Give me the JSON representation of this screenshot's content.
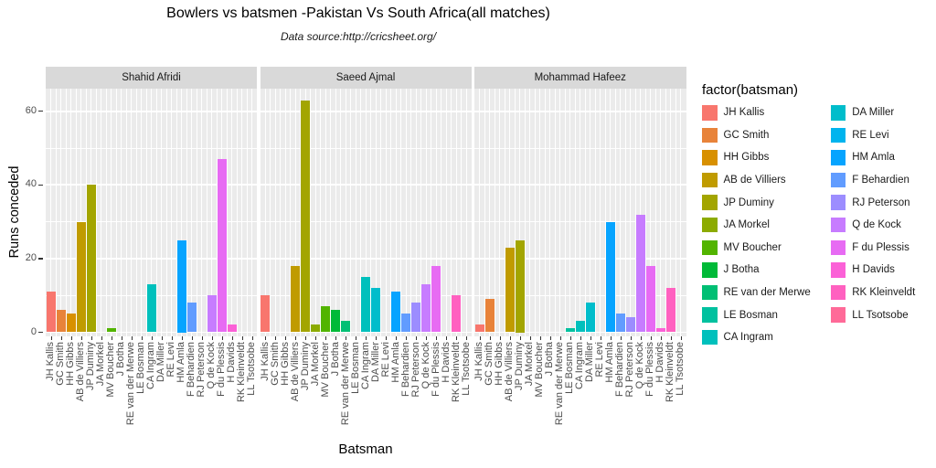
{
  "chart": {
    "title": "Bowlers vs batsmen -Pakistan Vs South Africa(all matches)",
    "subtitle": "Data source:http://cricsheet.org/",
    "xlabel": "Batsman",
    "ylabel": "Runs conceded",
    "legend_title": "factor(batsman)"
  },
  "chart_data": {
    "type": "bar",
    "facet_by": "bowler",
    "facets": [
      "Shahid Afridi",
      "Saeed Ajmal",
      "Mohammad Hafeez"
    ],
    "categories": [
      "JH Kallis",
      "GC Smith",
      "HH Gibbs",
      "AB de Villiers",
      "JP Duminy",
      "JA Morkel",
      "MV Boucher",
      "J Botha",
      "RE van der Merwe",
      "LE Bosman",
      "CA Ingram",
      "DA Miller",
      "RE Levi",
      "HM Amla",
      "F Behardien",
      "RJ Peterson",
      "Q de Kock",
      "F du Plessis",
      "H Davids",
      "RK Kleinveldt",
      "LL Tsotsobe"
    ],
    "colors": [
      "#F8766D",
      "#E8833A",
      "#D89000",
      "#C09B00",
      "#A3A500",
      "#8CAB00",
      "#52B400",
      "#00BA38",
      "#00BF74",
      "#00C19F",
      "#00C0BC",
      "#00BDCB",
      "#00B4EE",
      "#06A4FF",
      "#619CFF",
      "#9C8DFF",
      "#C77CFF",
      "#E76BF3",
      "#FB61D7",
      "#FF61C0",
      "#FF6A98"
    ],
    "panels": [
      {
        "bowler": "Shahid Afridi",
        "values": [
          11,
          6,
          5,
          30,
          40,
          0,
          1,
          0,
          0,
          0,
          13,
          0,
          0,
          25,
          8,
          0,
          10,
          47,
          2,
          0,
          0
        ]
      },
      {
        "bowler": "Saeed Ajmal",
        "values": [
          10,
          0,
          0,
          18,
          63,
          2,
          7,
          6,
          3,
          0,
          15,
          12,
          0,
          11,
          5,
          8,
          13,
          18,
          0,
          10,
          0
        ]
      },
      {
        "bowler": "Mohammad Hafeez",
        "values": [
          2,
          9,
          0,
          23,
          25,
          0,
          0,
          0,
          0,
          1,
          3,
          8,
          0,
          30,
          5,
          4,
          32,
          18,
          1,
          12,
          0
        ]
      }
    ],
    "yticks": [
      0,
      20,
      40,
      60
    ],
    "ylim": [
      0,
      66
    ],
    "grid": {
      "horizontal_major": [
        0,
        20,
        40,
        60
      ],
      "horizontal_minor": [
        10,
        30,
        50
      ],
      "vertical": "per-category",
      "color": "#FFFFFF"
    },
    "legend_position": "right",
    "legend_columns": [
      11,
      10
    ],
    "style": {
      "panel_bg": "#EBEBEB",
      "strip_bg": "#D9D9D9",
      "grid_color": "#FFFFFF",
      "axis_text_color": "#4D4D4D",
      "text_color": "#1A1A1A",
      "tick_color": "#333333"
    }
  }
}
